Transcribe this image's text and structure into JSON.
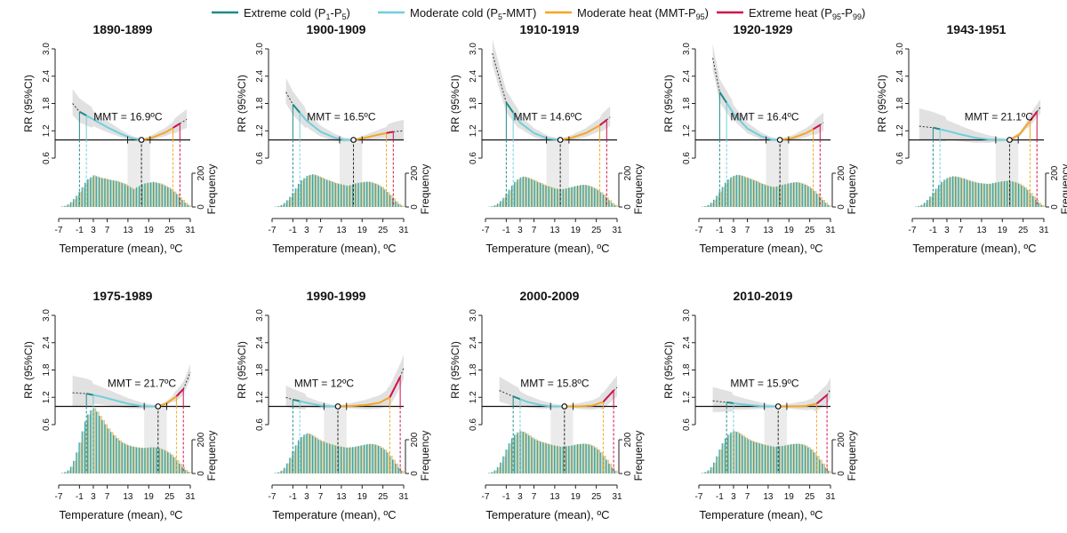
{
  "legend": [
    {
      "label": "Extreme cold (P",
      "sub1": "1",
      "mid": "-P",
      "sub2": "5",
      "end": ")",
      "color": "#1f8a8a"
    },
    {
      "label": "Moderate cold (P",
      "sub1": "5",
      "mid": "-MMT)",
      "sub2": "",
      "end": "",
      "color": "#6fcfdc"
    },
    {
      "label": "Moderate heat (MMT-P",
      "sub1": "95",
      "mid": ")",
      "sub2": "",
      "end": "",
      "color": "#f5a623"
    },
    {
      "label": "Extreme heat (P",
      "sub1": "95",
      "mid": "-P",
      "sub2": "99",
      "end": ")",
      "color": "#d0104c"
    }
  ],
  "colors": {
    "extreme_cold": "#1f8a8a",
    "moderate_cold": "#6fcfdc",
    "moderate_heat": "#f5a623",
    "extreme_heat": "#d0104c",
    "ci_band": "#dcdcdc",
    "mmt_band": "#e6e6e6"
  },
  "chart_data": {
    "type": "line",
    "ylabel": "RR (95%CI)",
    "xlabel": "Temperature (mean), ºC",
    "freq_label": "Frequency",
    "mmt_prefix": "MMT = ",
    "yticks": [
      "0.6",
      "1.2",
      "1.8",
      "2.4",
      "3.0"
    ],
    "ylim": [
      0.6,
      3.0
    ],
    "xticks": [
      -7,
      -1,
      3,
      7,
      13,
      19,
      25,
      31
    ],
    "xlim": [
      -7,
      31
    ],
    "freq_ticks": [
      0,
      200
    ],
    "panels": [
      {
        "title": "1890-1899",
        "mmt": 16.9,
        "mmt_label": "16.9ºC",
        "label_x": 13,
        "left": -3,
        "p1": -1,
        "p5": 1,
        "p95": 26,
        "p99": 28,
        "right": 30,
        "rr": [
          [
            -3,
            1.8
          ],
          [
            -1,
            1.62
          ],
          [
            3,
            1.45
          ],
          [
            7,
            1.28
          ],
          [
            11,
            1.13
          ],
          [
            14,
            1.04
          ],
          [
            16.9,
            1.0
          ],
          [
            20,
            1.05
          ],
          [
            24,
            1.17
          ],
          [
            28,
            1.36
          ],
          [
            30,
            1.45
          ]
        ],
        "hist": [
          0,
          4,
          8,
          18,
          34,
          56,
          80,
          108,
          140,
          172,
          198,
          212,
          225,
          218,
          210,
          205,
          202,
          196,
          192,
          188,
          185,
          178,
          170,
          162,
          150,
          138,
          128,
          140,
          150,
          162,
          168,
          172,
          175,
          178,
          172,
          168,
          160,
          150,
          140,
          128,
          110,
          92,
          70,
          50,
          30,
          15
        ]
      },
      {
        "title": "1900-1909",
        "mmt": 16.5,
        "mmt_label": "16.5ºC",
        "label_x": 13,
        "left": -3,
        "p1": -1,
        "p5": 1,
        "p95": 26,
        "p99": 28,
        "right": 31,
        "rr": [
          [
            -3,
            2.05
          ],
          [
            -1,
            1.78
          ],
          [
            3,
            1.42
          ],
          [
            7,
            1.18
          ],
          [
            11,
            1.05
          ],
          [
            14,
            1.0
          ],
          [
            16.5,
            1.0
          ],
          [
            20,
            1.05
          ],
          [
            24,
            1.12
          ],
          [
            28,
            1.18
          ],
          [
            31,
            1.2
          ]
        ],
        "hist": [
          0,
          3,
          6,
          14,
          28,
          48,
          72,
          100,
          132,
          165,
          190,
          205,
          222,
          228,
          232,
          226,
          218,
          210,
          200,
          192,
          185,
          178,
          170,
          165,
          160,
          155,
          150,
          155,
          162,
          168,
          172,
          175,
          178,
          180,
          178,
          172,
          165,
          155,
          142,
          125,
          106,
          85,
          62,
          40,
          22,
          10
        ]
      },
      {
        "title": "1910-1919",
        "mmt": 14.6,
        "mmt_label": "14.6ºC",
        "label_x": 11,
        "left": -5,
        "p1": -1,
        "p5": 1,
        "p95": 26,
        "p99": 28,
        "right": 29,
        "rr": [
          [
            -5,
            2.9
          ],
          [
            -3,
            2.35
          ],
          [
            -1,
            1.82
          ],
          [
            3,
            1.38
          ],
          [
            7,
            1.15
          ],
          [
            11,
            1.03
          ],
          [
            14.6,
            1.0
          ],
          [
            18,
            1.05
          ],
          [
            22,
            1.15
          ],
          [
            26,
            1.32
          ],
          [
            29,
            1.5
          ]
        ],
        "hist": [
          0,
          2,
          5,
          12,
          24,
          42,
          65,
          92,
          122,
          152,
          178,
          196,
          210,
          216,
          212,
          205,
          196,
          188,
          178,
          170,
          160,
          152,
          145,
          138,
          132,
          128,
          125,
          128,
          132,
          138,
          142,
          148,
          152,
          156,
          158,
          155,
          150,
          142,
          132,
          120,
          105,
          88,
          68,
          48,
          28,
          14
        ]
      },
      {
        "title": "1920-1929",
        "mmt": 16.4,
        "mmt_label": "16.4ºC",
        "label_x": 12,
        "left": -3,
        "p1": -1,
        "p5": 1,
        "p95": 26,
        "p99": 28,
        "right": 29,
        "rr": [
          [
            -3,
            2.8
          ],
          [
            -1,
            2.05
          ],
          [
            3,
            1.58
          ],
          [
            7,
            1.25
          ],
          [
            11,
            1.08
          ],
          [
            14,
            1.01
          ],
          [
            16.4,
            1.0
          ],
          [
            20,
            1.04
          ],
          [
            24,
            1.15
          ],
          [
            27,
            1.28
          ],
          [
            29,
            1.38
          ]
        ],
        "hist": [
          0,
          3,
          6,
          14,
          30,
          52,
          80,
          110,
          142,
          172,
          196,
          212,
          222,
          228,
          226,
          220,
          212,
          206,
          198,
          190,
          182,
          172,
          164,
          156,
          150,
          145,
          142,
          146,
          152,
          158,
          162,
          168,
          172,
          175,
          176,
          172,
          166,
          158,
          146,
          132,
          114,
          94,
          72,
          50,
          30,
          14
        ]
      },
      {
        "title": "1943-1951",
        "mmt": 21.1,
        "mmt_label": "21.1ºC",
        "label_x": 18,
        "left": -5,
        "p1": -1,
        "p5": 1,
        "p95": 27,
        "p99": 29,
        "right": 30,
        "rr": [
          [
            -5,
            1.3
          ],
          [
            -1,
            1.27
          ],
          [
            3,
            1.2
          ],
          [
            7,
            1.12
          ],
          [
            11,
            1.05
          ],
          [
            15,
            1.01
          ],
          [
            18,
            1.0
          ],
          [
            21.1,
            1.0
          ],
          [
            24,
            1.12
          ],
          [
            27,
            1.42
          ],
          [
            30,
            1.72
          ]
        ],
        "hist": [
          0,
          3,
          7,
          15,
          30,
          50,
          74,
          102,
          130,
          156,
          178,
          194,
          206,
          214,
          218,
          216,
          212,
          206,
          200,
          192,
          186,
          180,
          175,
          170,
          168,
          166,
          164,
          166,
          170,
          174,
          178,
          182,
          184,
          186,
          184,
          180,
          174,
          166,
          154,
          140,
          122,
          100,
          76,
          52,
          30,
          14
        ]
      },
      {
        "title": "1975-1989",
        "mmt": 21.7,
        "mmt_label": "21.7ºC",
        "label_x": 17,
        "left": -3,
        "p1": 1,
        "p5": 3,
        "p95": 27,
        "p99": 29,
        "right": 31,
        "rr": [
          [
            -3,
            1.3
          ],
          [
            1,
            1.28
          ],
          [
            5,
            1.22
          ],
          [
            9,
            1.14
          ],
          [
            13,
            1.06
          ],
          [
            17,
            1.01
          ],
          [
            19,
            1.0
          ],
          [
            21.7,
            1.0
          ],
          [
            24,
            1.06
          ],
          [
            27,
            1.22
          ],
          [
            29,
            1.38
          ],
          [
            31,
            1.75
          ]
        ],
        "hist": [
          0,
          4,
          10,
          22,
          48,
          90,
          150,
          220,
          300,
          370,
          420,
          450,
          465,
          440,
          410,
          380,
          350,
          320,
          295,
          272,
          252,
          235,
          220,
          210,
          200,
          194,
          190,
          186,
          184,
          182,
          182,
          184,
          186,
          186,
          184,
          180,
          172,
          162,
          150,
          135,
          116,
          94,
          70,
          46,
          26,
          12
        ]
      },
      {
        "title": "1990-1999",
        "mmt": 12,
        "mmt_label": "12ºC",
        "label_x": 8,
        "left": -3,
        "p1": -1,
        "p5": 1,
        "p95": 27,
        "p99": 30,
        "right": 31,
        "rr": [
          [
            -3,
            1.2
          ],
          [
            -1,
            1.15
          ],
          [
            3,
            1.08
          ],
          [
            7,
            1.02
          ],
          [
            10,
            1.0
          ],
          [
            12,
            1.0
          ],
          [
            16,
            1.01
          ],
          [
            20,
            1.03
          ],
          [
            24,
            1.08
          ],
          [
            27,
            1.2
          ],
          [
            30,
            1.65
          ],
          [
            31,
            1.85
          ]
        ],
        "hist": [
          0,
          4,
          9,
          20,
          40,
          72,
          112,
          158,
          200,
          236,
          260,
          276,
          285,
          280,
          268,
          255,
          242,
          232,
          224,
          216,
          210,
          204,
          198,
          194,
          190,
          186,
          184,
          186,
          188,
          192,
          196,
          200,
          204,
          208,
          210,
          208,
          204,
          196,
          184,
          170,
          150,
          126,
          98,
          70,
          42,
          20
        ]
      },
      {
        "title": "2000-2009",
        "mmt": 15.8,
        "mmt_label": "15.8ºC",
        "label_x": 13,
        "left": -3,
        "p1": 1,
        "p5": 3,
        "p95": 27,
        "p99": 30,
        "right": 31,
        "rr": [
          [
            -3,
            1.35
          ],
          [
            1,
            1.22
          ],
          [
            5,
            1.1
          ],
          [
            9,
            1.03
          ],
          [
            12,
            1.0
          ],
          [
            15.8,
            1.0
          ],
          [
            20,
            1.0
          ],
          [
            24,
            1.02
          ],
          [
            27,
            1.1
          ],
          [
            30,
            1.35
          ],
          [
            31,
            1.42
          ]
        ],
        "hist": [
          0,
          4,
          10,
          22,
          44,
          78,
          122,
          170,
          214,
          250,
          276,
          292,
          300,
          296,
          284,
          270,
          256,
          244,
          234,
          226,
          220,
          214,
          208,
          202,
          198,
          194,
          190,
          192,
          194,
          196,
          200,
          204,
          208,
          210,
          212,
          210,
          206,
          198,
          186,
          170,
          150,
          126,
          98,
          70,
          42,
          20
        ]
      },
      {
        "title": "2010-2019",
        "mmt": 15.9,
        "mmt_label": "15.9ºC",
        "label_x": 12,
        "left": -3,
        "p1": 1,
        "p5": 3,
        "p95": 27,
        "p99": 30,
        "right": 31,
        "rr": [
          [
            -3,
            1.12
          ],
          [
            1,
            1.09
          ],
          [
            5,
            1.05
          ],
          [
            9,
            1.02
          ],
          [
            12,
            1.0
          ],
          [
            15.9,
            1.0
          ],
          [
            20,
            1.0
          ],
          [
            24,
            1.01
          ],
          [
            27,
            1.06
          ],
          [
            30,
            1.25
          ],
          [
            31,
            1.38
          ]
        ],
        "hist": [
          0,
          4,
          10,
          22,
          44,
          78,
          122,
          170,
          214,
          250,
          276,
          292,
          300,
          296,
          284,
          270,
          256,
          244,
          234,
          226,
          220,
          214,
          208,
          202,
          198,
          194,
          190,
          192,
          194,
          196,
          200,
          204,
          208,
          210,
          212,
          210,
          206,
          198,
          186,
          170,
          150,
          126,
          98,
          70,
          42,
          20
        ]
      }
    ]
  }
}
